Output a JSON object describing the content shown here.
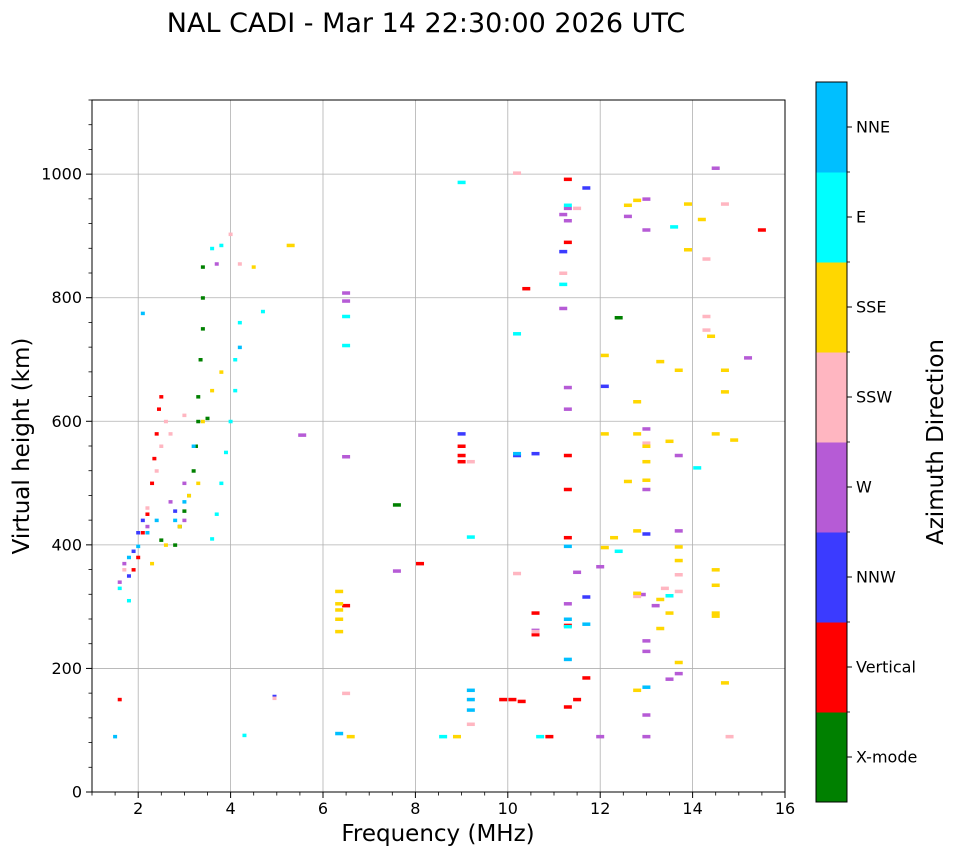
{
  "chart_data": {
    "type": "scatter",
    "title": "NAL CADI - Mar 14 22:30:00 2026 UTC",
    "xlabel": "Frequency (MHz)",
    "ylabel": "Virtual height (km)",
    "xlim": [
      1,
      16
    ],
    "ylim": [
      0,
      1120
    ],
    "xticks": [
      2,
      4,
      6,
      8,
      10,
      12,
      14,
      16
    ],
    "yticks": [
      0,
      200,
      400,
      600,
      800,
      1000
    ],
    "grid": true,
    "colorbar": {
      "label": "Azimuth Direction",
      "categories": [
        {
          "name": "X-mode",
          "color": "#008000"
        },
        {
          "name": "Vertical",
          "color": "#ff0000"
        },
        {
          "name": "NNW",
          "color": "#3b3bff"
        },
        {
          "name": "W",
          "color": "#b65bd6"
        },
        {
          "name": "SSW",
          "color": "#ffb6c1"
        },
        {
          "name": "SSE",
          "color": "#ffd700"
        },
        {
          "name": "E",
          "color": "#00ffff"
        },
        {
          "name": "NNE",
          "color": "#00bfff"
        }
      ]
    },
    "series": [
      {
        "name": "X-mode",
        "points": [
          [
            2.5,
            408
          ],
          [
            2.8,
            400
          ],
          [
            2.9,
            430
          ],
          [
            3.0,
            455
          ],
          [
            3.1,
            480
          ],
          [
            3.2,
            520
          ],
          [
            3.25,
            560
          ],
          [
            3.3,
            600
          ],
          [
            3.3,
            640
          ],
          [
            3.35,
            700
          ],
          [
            3.4,
            750
          ],
          [
            3.4,
            800
          ],
          [
            3.4,
            850
          ],
          [
            3.5,
            605
          ],
          [
            7.6,
            465
          ],
          [
            12.4,
            768
          ]
        ]
      },
      {
        "name": "Vertical",
        "points": [
          [
            1.6,
            150
          ],
          [
            1.9,
            360
          ],
          [
            2.0,
            380
          ],
          [
            2.1,
            420
          ],
          [
            2.2,
            450
          ],
          [
            2.3,
            500
          ],
          [
            2.35,
            540
          ],
          [
            2.4,
            580
          ],
          [
            2.45,
            620
          ],
          [
            2.5,
            640
          ],
          [
            6.5,
            302
          ],
          [
            8.1,
            370
          ],
          [
            9.0,
            560
          ],
          [
            9.0,
            545
          ],
          [
            9.0,
            535
          ],
          [
            9.9,
            150
          ],
          [
            10.1,
            150
          ],
          [
            10.3,
            147
          ],
          [
            10.6,
            290
          ],
          [
            10.6,
            255
          ],
          [
            10.9,
            90
          ],
          [
            11.3,
            992
          ],
          [
            11.3,
            890
          ],
          [
            11.3,
            545
          ],
          [
            11.3,
            490
          ],
          [
            11.3,
            412
          ],
          [
            11.3,
            270
          ],
          [
            11.3,
            138
          ],
          [
            11.5,
            150
          ],
          [
            11.7,
            185
          ],
          [
            15.5,
            910
          ],
          [
            10.4,
            815
          ]
        ]
      },
      {
        "name": "NNW",
        "points": [
          [
            1.8,
            350
          ],
          [
            1.9,
            390
          ],
          [
            2.0,
            420
          ],
          [
            2.1,
            440
          ],
          [
            2.8,
            455
          ],
          [
            4.95,
            155
          ],
          [
            9.0,
            580
          ],
          [
            10.2,
            545
          ],
          [
            10.6,
            548
          ],
          [
            11.2,
            875
          ],
          [
            11.7,
            978
          ],
          [
            11.7,
            316
          ],
          [
            12.1,
            657
          ],
          [
            13.0,
            418
          ]
        ]
      },
      {
        "name": "W",
        "points": [
          [
            1.6,
            340
          ],
          [
            1.7,
            370
          ],
          [
            2.2,
            430
          ],
          [
            2.7,
            470
          ],
          [
            3.0,
            440
          ],
          [
            3.0,
            500
          ],
          [
            3.7,
            855
          ],
          [
            5.55,
            578
          ],
          [
            6.5,
            543
          ],
          [
            6.5,
            808
          ],
          [
            6.5,
            795
          ],
          [
            7.6,
            358
          ],
          [
            10.6,
            262
          ],
          [
            11.2,
            935
          ],
          [
            11.3,
            945
          ],
          [
            11.3,
            925
          ],
          [
            11.3,
            655
          ],
          [
            11.3,
            620
          ],
          [
            11.2,
            783
          ],
          [
            11.3,
            305
          ],
          [
            11.5,
            356
          ],
          [
            12.0,
            90
          ],
          [
            12.0,
            365
          ],
          [
            12.6,
            932
          ],
          [
            12.9,
            320
          ],
          [
            13.0,
            910
          ],
          [
            13.0,
            960
          ],
          [
            13.0,
            588
          ],
          [
            13.0,
            490
          ],
          [
            13.0,
            245
          ],
          [
            13.0,
            228
          ],
          [
            13.0,
            125
          ],
          [
            13.0,
            90
          ],
          [
            13.2,
            302
          ],
          [
            13.5,
            183
          ],
          [
            13.7,
            545
          ],
          [
            13.7,
            423
          ],
          [
            13.7,
            192
          ],
          [
            14.5,
            1010
          ],
          [
            15.2,
            703
          ]
        ]
      },
      {
        "name": "SSW",
        "points": [
          [
            1.7,
            360
          ],
          [
            2.2,
            460
          ],
          [
            2.4,
            520
          ],
          [
            2.5,
            560
          ],
          [
            2.6,
            600
          ],
          [
            2.7,
            580
          ],
          [
            3.0,
            610
          ],
          [
            4.0,
            903
          ],
          [
            4.2,
            855
          ],
          [
            4.95,
            152
          ],
          [
            6.5,
            160
          ],
          [
            9.2,
            535
          ],
          [
            9.2,
            110
          ],
          [
            10.2,
            1002
          ],
          [
            10.2,
            354
          ],
          [
            10.6,
            260
          ],
          [
            11.2,
            840
          ],
          [
            11.5,
            945
          ],
          [
            12.8,
            317
          ],
          [
            13.0,
            565
          ],
          [
            13.4,
            330
          ],
          [
            13.7,
            325
          ],
          [
            13.7,
            352
          ],
          [
            14.3,
            863
          ],
          [
            14.3,
            770
          ],
          [
            14.3,
            748
          ],
          [
            14.7,
            952
          ],
          [
            14.8,
            90
          ]
        ]
      },
      {
        "name": "SSE",
        "points": [
          [
            2.3,
            370
          ],
          [
            2.6,
            400
          ],
          [
            2.9,
            430
          ],
          [
            3.1,
            480
          ],
          [
            3.3,
            500
          ],
          [
            3.4,
            600
          ],
          [
            3.6,
            650
          ],
          [
            3.8,
            680
          ],
          [
            4.5,
            850
          ],
          [
            5.3,
            885
          ],
          [
            6.35,
            325
          ],
          [
            6.35,
            305
          ],
          [
            6.35,
            295
          ],
          [
            6.35,
            280
          ],
          [
            6.35,
            260
          ],
          [
            6.6,
            90
          ],
          [
            8.9,
            90
          ],
          [
            12.1,
            707
          ],
          [
            12.1,
            580
          ],
          [
            12.1,
            396
          ],
          [
            12.3,
            412
          ],
          [
            12.6,
            950
          ],
          [
            12.6,
            503
          ],
          [
            12.8,
            958
          ],
          [
            12.8,
            632
          ],
          [
            12.8,
            580
          ],
          [
            12.8,
            423
          ],
          [
            12.8,
            322
          ],
          [
            12.8,
            165
          ],
          [
            13.0,
            560
          ],
          [
            13.0,
            535
          ],
          [
            13.0,
            505
          ],
          [
            13.3,
            697
          ],
          [
            13.3,
            312
          ],
          [
            13.3,
            265
          ],
          [
            13.5,
            568
          ],
          [
            13.5,
            318
          ],
          [
            13.5,
            290
          ],
          [
            13.7,
            683
          ],
          [
            13.7,
            397
          ],
          [
            13.7,
            375
          ],
          [
            13.7,
            210
          ],
          [
            13.9,
            878
          ],
          [
            13.9,
            952
          ],
          [
            14.2,
            927
          ],
          [
            14.4,
            738
          ],
          [
            14.5,
            580
          ],
          [
            14.5,
            360
          ],
          [
            14.5,
            335
          ],
          [
            14.5,
            290
          ],
          [
            14.5,
            285
          ],
          [
            14.7,
            683
          ],
          [
            14.7,
            648
          ],
          [
            14.7,
            177
          ],
          [
            14.9,
            570
          ]
        ]
      },
      {
        "name": "E",
        "points": [
          [
            1.6,
            330
          ],
          [
            1.8,
            310
          ],
          [
            3.6,
            410
          ],
          [
            3.7,
            450
          ],
          [
            3.8,
            500
          ],
          [
            3.9,
            550
          ],
          [
            4.0,
            600
          ],
          [
            4.1,
            650
          ],
          [
            4.1,
            700
          ],
          [
            4.2,
            760
          ],
          [
            3.6,
            880
          ],
          [
            3.8,
            885
          ],
          [
            4.3,
            92
          ],
          [
            4.7,
            778
          ],
          [
            6.5,
            770
          ],
          [
            6.5,
            723
          ],
          [
            8.6,
            90
          ],
          [
            9.0,
            987
          ],
          [
            9.2,
            413
          ],
          [
            10.2,
            742
          ],
          [
            10.7,
            90
          ],
          [
            11.2,
            822
          ],
          [
            11.3,
            950
          ],
          [
            11.3,
            268
          ],
          [
            12.4,
            390
          ],
          [
            13.6,
            915
          ],
          [
            14.1,
            525
          ],
          [
            13.5,
            318
          ]
        ]
      },
      {
        "name": "NNE",
        "points": [
          [
            1.5,
            90
          ],
          [
            1.8,
            380
          ],
          [
            2.0,
            398
          ],
          [
            2.1,
            775
          ],
          [
            2.2,
            420
          ],
          [
            2.4,
            440
          ],
          [
            2.8,
            440
          ],
          [
            3.0,
            470
          ],
          [
            3.2,
            560
          ],
          [
            4.2,
            720
          ],
          [
            6.35,
            95
          ],
          [
            9.2,
            165
          ],
          [
            9.2,
            150
          ],
          [
            9.2,
            133
          ],
          [
            10.2,
            548
          ],
          [
            11.3,
            398
          ],
          [
            11.3,
            280
          ],
          [
            11.3,
            215
          ],
          [
            11.7,
            272
          ],
          [
            13.0,
            170
          ]
        ]
      }
    ]
  }
}
